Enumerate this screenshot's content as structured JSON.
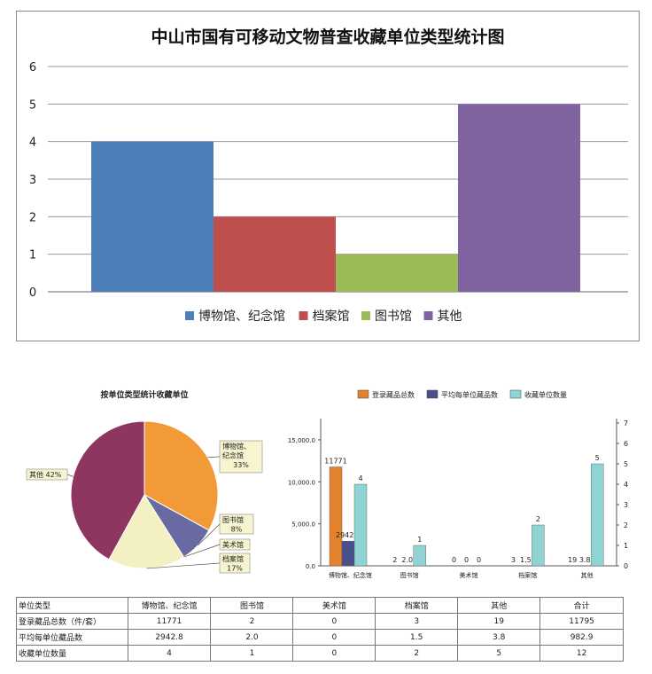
{
  "chart_data": [
    {
      "type": "bar",
      "title": "中山市国有可移动文物普查收藏单位类型统计图",
      "categories": [
        "博物馆、纪念馆",
        "档案馆",
        "图书馆",
        "其他"
      ],
      "values": [
        4,
        2,
        1,
        5
      ],
      "colors": [
        "#4f7fba",
        "#bf4f4d",
        "#9bbb59",
        "#8064a2"
      ],
      "ylim": [
        0,
        6
      ],
      "yticks": [
        "0",
        "1",
        "2",
        "3",
        "4",
        "5",
        "6"
      ],
      "grid": true,
      "legend": "bottom",
      "xlabel": "",
      "ylabel": ""
    },
    {
      "type": "pie",
      "title": "按单位类型统计收藏单位",
      "slices": [
        {
          "label": "博物馆、纪念馆",
          "label_lines": [
            "博物馆、",
            "纪念馆",
            "33%"
          ],
          "value": 33,
          "color": "#f29a37"
        },
        {
          "label": "图书馆",
          "label_lines": [
            "图书馆",
            "8%"
          ],
          "value": 8,
          "color": "#6a6aa2"
        },
        {
          "label": "美术馆",
          "label_lines": [
            "美术馆"
          ],
          "value": 0,
          "color": "#bbbbbb"
        },
        {
          "label": "档案馆",
          "label_lines": [
            "档案馆",
            "17%"
          ],
          "value": 17,
          "color": "#f3f0c2"
        },
        {
          "label": "其他",
          "label_lines": [
            "其他 42%"
          ],
          "value": 42,
          "color": "#8e3560"
        }
      ]
    },
    {
      "type": "bar",
      "categories": [
        "博物馆、纪念馆",
        "图书馆",
        "美术馆",
        "档案馆",
        "其他"
      ],
      "legend": "top",
      "series": [
        {
          "name": "登录藏品总数",
          "axis": "left",
          "color": "#e3812c",
          "values": [
            11771,
            2,
            0,
            3,
            19
          ],
          "labels": [
            "11771",
            "2",
            "0",
            "3",
            "19"
          ]
        },
        {
          "name": "平均每单位藏品数",
          "axis": "left",
          "color": "#4b4f8c",
          "values": [
            2942.8,
            2.0,
            0,
            1.5,
            3.8
          ],
          "labels": [
            "2942.8",
            "2.0",
            "0",
            "1.5",
            "3.8"
          ]
        },
        {
          "name": "收藏单位数量",
          "axis": "right",
          "color": "#8fd3d3",
          "values": [
            4,
            1,
            0,
            2,
            5
          ],
          "labels": [
            "4",
            "1",
            "0",
            "2",
            "5"
          ]
        }
      ],
      "left_ylim": [
        0,
        17000
      ],
      "left_ticks": [
        0,
        5000,
        10000,
        15000
      ],
      "left_tick_labels": [
        "0.0",
        "5,000.0",
        "10,000.0",
        "15,000.0"
      ],
      "right_ylim": [
        0,
        7
      ],
      "right_ticks": [
        "0",
        "1",
        "2",
        "3",
        "4",
        "5",
        "6",
        "7"
      ]
    },
    {
      "type": "table",
      "header": [
        "单位类型",
        "博物馆、纪念馆",
        "图书馆",
        "美术馆",
        "档案馆",
        "其他",
        "合计"
      ],
      "rows": [
        [
          "登录藏品总数（件/套）",
          "11771",
          "2",
          "0",
          "3",
          "19",
          "11795"
        ],
        [
          "平均每单位藏品数",
          "2942.8",
          "2.0",
          "0",
          "1.5",
          "3.8",
          "982.9"
        ],
        [
          "收藏单位数量",
          "4",
          "1",
          "0",
          "2",
          "5",
          "12"
        ]
      ]
    }
  ]
}
